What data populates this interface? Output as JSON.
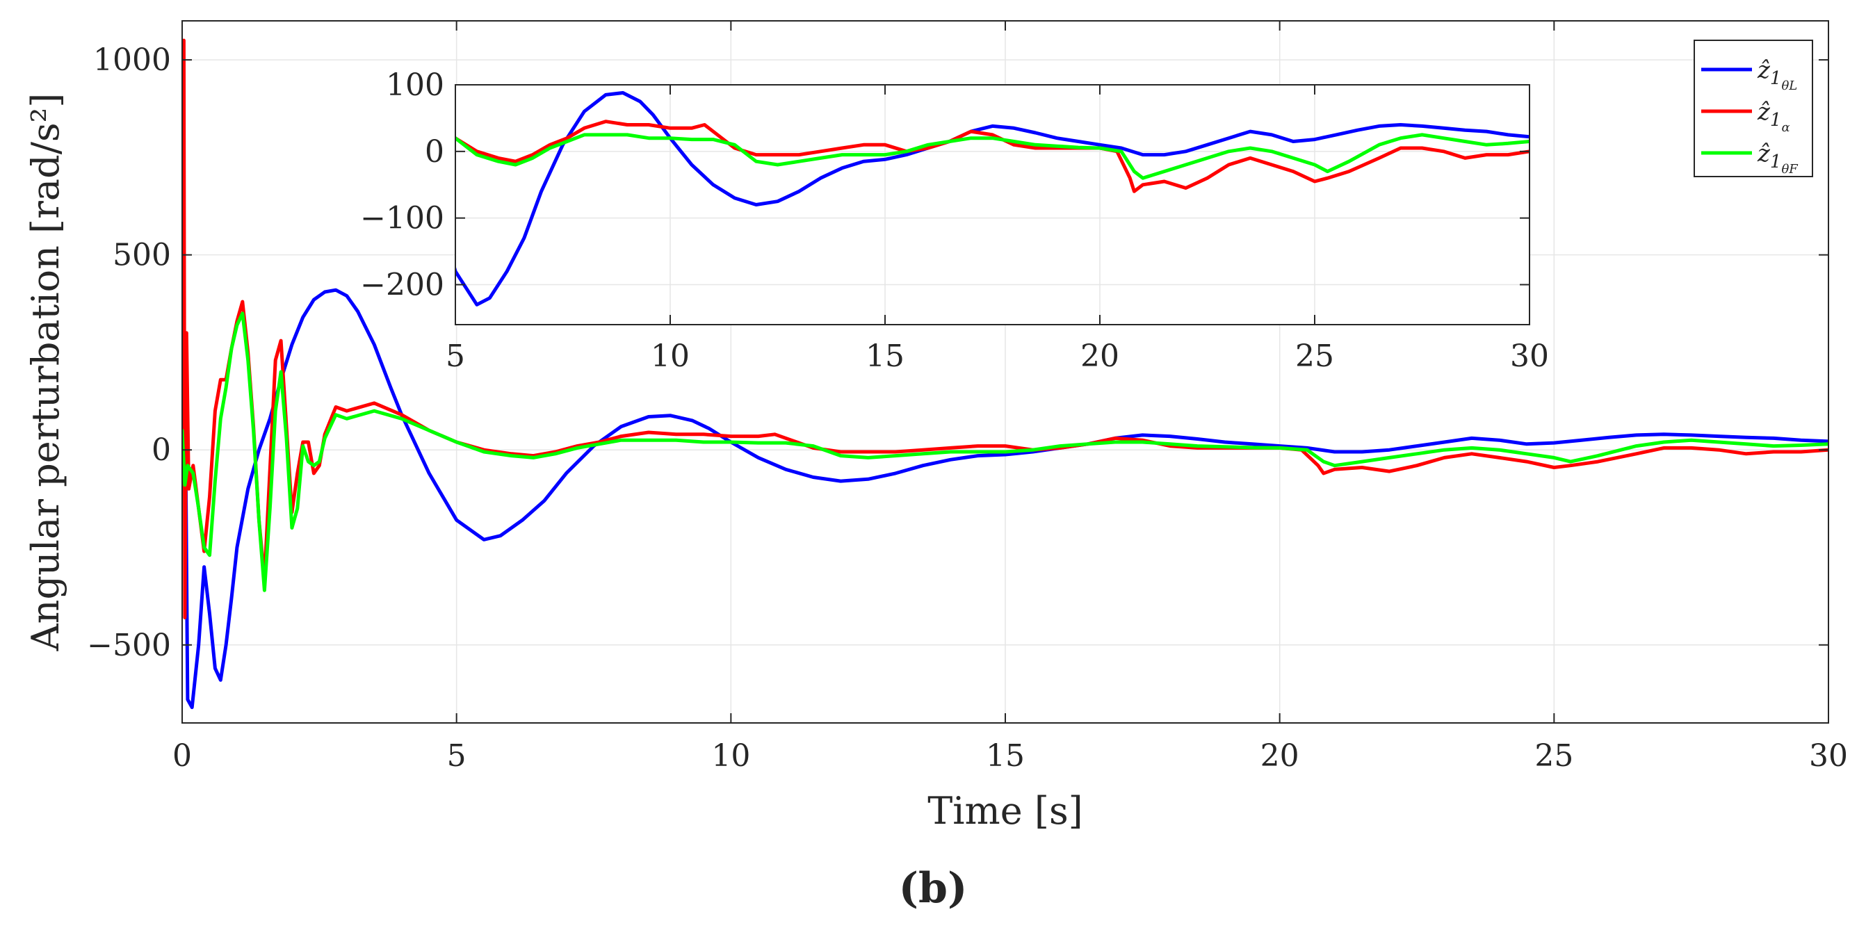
{
  "chart_data": [
    {
      "id": "main",
      "type": "line",
      "xlabel": "Time [s]",
      "ylabel": "Angular perturbation [rad/s²]",
      "xlim": [
        0,
        30
      ],
      "ylim": [
        -700,
        1100
      ],
      "xticks": [
        0,
        5,
        10,
        15,
        20,
        25,
        30
      ],
      "yticks": [
        -500,
        0,
        500,
        1000
      ],
      "xtick_labels": [
        "0",
        "5",
        "10",
        "15",
        "20",
        "25",
        "30"
      ],
      "ytick_labels": [
        "−500",
        "0",
        "500",
        "1000"
      ],
      "grid": true,
      "legend_position": "top-right",
      "series": [
        {
          "name": "z1_thetaL",
          "color": "#0000ff",
          "x": [
            0,
            0.05,
            0.1,
            0.18,
            0.3,
            0.4,
            0.5,
            0.6,
            0.7,
            0.8,
            0.9,
            1.0,
            1.2,
            1.4,
            1.6,
            1.8,
            2.0,
            2.2,
            2.4,
            2.6,
            2.8,
            3.0,
            3.2,
            3.5,
            3.8,
            4.0,
            4.5,
            5.0,
            5.5,
            5.8,
            6.2,
            6.6,
            7.0,
            7.5,
            8.0,
            8.5,
            8.9,
            9.3,
            9.6,
            10.0,
            10.5,
            11.0,
            11.5,
            12.0,
            12.5,
            13.0,
            13.5,
            14.0,
            14.5,
            15.0,
            15.5,
            16.0,
            16.5,
            17.0,
            17.5,
            18.0,
            18.5,
            19.0,
            19.5,
            20.0,
            20.5,
            21.0,
            21.5,
            22.0,
            22.5,
            23.0,
            23.5,
            24.0,
            24.5,
            25.0,
            25.5,
            26.0,
            26.5,
            27.0,
            27.5,
            28.0,
            28.5,
            29.0,
            29.5,
            30.0
          ],
          "y": [
            150,
            230,
            -640,
            -660,
            -500,
            -300,
            -420,
            -560,
            -590,
            -500,
            -380,
            -250,
            -100,
            0,
            80,
            180,
            270,
            340,
            385,
            405,
            410,
            395,
            355,
            270,
            160,
            90,
            -60,
            -180,
            -230,
            -220,
            -180,
            -130,
            -60,
            10,
            60,
            85,
            88,
            75,
            55,
            20,
            -20,
            -50,
            -70,
            -80,
            -75,
            -60,
            -40,
            -25,
            -15,
            -12,
            -5,
            5,
            15,
            30,
            38,
            35,
            28,
            20,
            15,
            10,
            5,
            -5,
            -5,
            0,
            10,
            20,
            30,
            25,
            15,
            18,
            25,
            32,
            38,
            40,
            38,
            35,
            32,
            30,
            25,
            22
          ]
        },
        {
          "name": "z1_alpha",
          "color": "#ff0000",
          "x": [
            0,
            0.03,
            0.05,
            0.08,
            0.12,
            0.2,
            0.3,
            0.4,
            0.5,
            0.6,
            0.7,
            0.8,
            0.9,
            1.0,
            1.1,
            1.2,
            1.3,
            1.4,
            1.5,
            1.6,
            1.7,
            1.8,
            1.9,
            2.0,
            2.1,
            2.2,
            2.3,
            2.4,
            2.5,
            2.6,
            2.8,
            3.0,
            3.5,
            4.0,
            4.5,
            5.0,
            5.5,
            6.0,
            6.4,
            6.8,
            7.2,
            7.6,
            8.0,
            8.5,
            9.0,
            9.5,
            10.0,
            10.5,
            10.8,
            11.2,
            11.5,
            12.0,
            12.5,
            13.0,
            13.5,
            14.0,
            14.5,
            15.0,
            15.5,
            16.0,
            16.5,
            17.0,
            17.5,
            18.0,
            18.5,
            19.0,
            19.5,
            20.0,
            20.4,
            20.7,
            20.8,
            21.0,
            21.5,
            22.0,
            22.5,
            23.0,
            23.5,
            24.0,
            24.5,
            25.0,
            25.3,
            25.8,
            26.5,
            27.0,
            27.5,
            28.0,
            28.5,
            29.0,
            29.5,
            30.0
          ],
          "y": [
            0,
            1050,
            -430,
            300,
            -100,
            -40,
            -150,
            -260,
            -120,
            100,
            180,
            180,
            260,
            330,
            380,
            250,
            60,
            -180,
            -330,
            -50,
            230,
            280,
            60,
            -160,
            -60,
            20,
            20,
            -60,
            -40,
            40,
            110,
            100,
            120,
            90,
            50,
            20,
            0,
            -10,
            -15,
            -5,
            10,
            20,
            35,
            45,
            40,
            40,
            35,
            35,
            40,
            20,
            5,
            -5,
            -5,
            -5,
            0,
            5,
            10,
            10,
            0,
            5,
            15,
            30,
            25,
            10,
            5,
            5,
            5,
            5,
            0,
            -40,
            -60,
            -50,
            -45,
            -55,
            -40,
            -20,
            -10,
            -20,
            -30,
            -45,
            -40,
            -30,
            -10,
            5,
            5,
            0,
            -10,
            -5,
            -5,
            0
          ]
        },
        {
          "name": "z1_thetaF",
          "color": "#00ff00",
          "x": [
            0,
            0.05,
            0.1,
            0.2,
            0.3,
            0.4,
            0.5,
            0.6,
            0.7,
            0.8,
            0.9,
            1.0,
            1.1,
            1.2,
            1.3,
            1.4,
            1.5,
            1.6,
            1.7,
            1.8,
            1.9,
            2.0,
            2.1,
            2.2,
            2.3,
            2.4,
            2.5,
            2.6,
            2.8,
            3.0,
            3.5,
            4.0,
            4.5,
            5.0,
            5.5,
            6.0,
            6.4,
            6.8,
            7.2,
            7.6,
            8.0,
            8.5,
            9.0,
            9.5,
            10.0,
            10.5,
            11.0,
            11.5,
            12.0,
            12.5,
            13.0,
            13.5,
            14.0,
            14.5,
            15.0,
            15.5,
            16.0,
            16.5,
            17.0,
            17.5,
            18.0,
            18.5,
            19.0,
            19.5,
            20.0,
            20.5,
            20.8,
            21.0,
            21.5,
            22.0,
            22.5,
            23.0,
            23.5,
            24.0,
            24.5,
            25.0,
            25.3,
            25.8,
            26.5,
            27.0,
            27.5,
            28.0,
            28.5,
            29.0,
            29.5,
            30.0
          ],
          "y": [
            50,
            -90,
            -40,
            -60,
            -150,
            -250,
            -270,
            -80,
            80,
            160,
            260,
            320,
            350,
            230,
            50,
            -180,
            -360,
            -150,
            100,
            200,
            30,
            -200,
            -150,
            10,
            -30,
            -40,
            -30,
            30,
            90,
            80,
            100,
            80,
            50,
            20,
            -5,
            -15,
            -20,
            -10,
            5,
            15,
            25,
            25,
            25,
            20,
            20,
            18,
            18,
            10,
            -15,
            -20,
            -15,
            -10,
            -5,
            -5,
            -5,
            0,
            10,
            15,
            20,
            20,
            15,
            10,
            8,
            6,
            5,
            0,
            -30,
            -40,
            -30,
            -20,
            -10,
            0,
            5,
            0,
            -10,
            -20,
            -30,
            -15,
            10,
            20,
            25,
            20,
            15,
            10,
            12,
            15
          ]
        }
      ]
    },
    {
      "id": "inset",
      "type": "line",
      "xlim": [
        5,
        30
      ],
      "ylim": [
        -260,
        100
      ],
      "xticks": [
        5,
        10,
        15,
        20,
        25,
        30
      ],
      "yticks": [
        -200,
        -100,
        0,
        100
      ],
      "xtick_labels": [
        "5",
        "10",
        "15",
        "20",
        "25",
        "30"
      ],
      "ytick_labels": [
        "−200",
        "−100",
        "0",
        "100"
      ],
      "grid": true,
      "note": "zoomed view of the same three series over 5-30 s"
    }
  ],
  "legend": {
    "items": [
      {
        "base": "ẑ",
        "sub1": "1",
        "sub2": "θL",
        "color": "#0000ff"
      },
      {
        "base": "ẑ",
        "sub1": "1",
        "sub2": "α",
        "color": "#ff0000"
      },
      {
        "base": "ẑ",
        "sub1": "1",
        "sub2": "θF",
        "color": "#00ff00"
      }
    ]
  },
  "caption": "(b)"
}
